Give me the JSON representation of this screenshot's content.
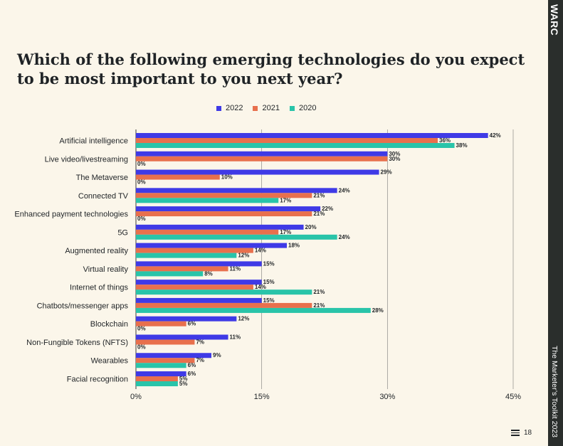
{
  "brand": "WARC",
  "side_caption": "The Marketer’s Toolkit 2023",
  "page_number": "18",
  "chart_data": {
    "type": "bar",
    "orientation": "horizontal",
    "title": "Which of the following emerging technologies do you expect to be most important to you next year?",
    "categories": [
      "Artificial intelligence",
      "Live video/livestreaming",
      "The Metaverse",
      "Connected TV",
      "Enhanced payment technologies",
      "5G",
      "Augmented reality",
      "Virtual reality",
      "Internet of things",
      "Chatbots/messenger apps",
      "Blockchain",
      "Non-Fungible Tokens (NFTS)",
      "Wearables",
      "Facial recognition"
    ],
    "series": [
      {
        "name": "2022",
        "color": "#3f3ae6",
        "values": [
          42,
          30,
          29,
          24,
          22,
          20,
          18,
          15,
          15,
          15,
          12,
          11,
          9,
          6
        ]
      },
      {
        "name": "2021",
        "color": "#e8704d",
        "values": [
          36,
          30,
          10,
          21,
          21,
          17,
          14,
          11,
          14,
          21,
          6,
          7,
          7,
          5
        ]
      },
      {
        "name": "2020",
        "color": "#29c4a9",
        "values": [
          38,
          0,
          0,
          17,
          0,
          24,
          12,
          8,
          21,
          28,
          0,
          0,
          6,
          5
        ]
      }
    ],
    "value_suffix": "%",
    "xlim": [
      0,
      45
    ],
    "x_ticks": [
      "0%",
      "15%",
      "30%",
      "45%"
    ],
    "grid": true,
    "legend_position": "top"
  }
}
